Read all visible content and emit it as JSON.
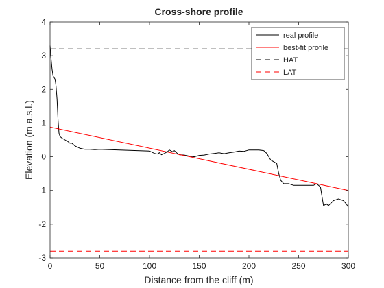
{
  "chart_data": {
    "type": "line",
    "title": "Cross-shore profile",
    "xlabel": "Distance from the cliff (m)",
    "ylabel": "Elevation (m a.s.l.)",
    "xlim": [
      0,
      300
    ],
    "ylim": [
      -3,
      4
    ],
    "xticks": [
      0,
      50,
      100,
      150,
      200,
      250,
      300
    ],
    "yticks": [
      -3,
      -2,
      -1,
      0,
      1,
      2,
      3,
      4
    ],
    "grid": false,
    "legend_position": "top-right",
    "series": [
      {
        "name": "real profile",
        "color": "#000000",
        "style": "solid",
        "x": [
          0,
          1,
          2,
          3,
          5,
          6,
          7,
          8,
          9,
          10,
          12,
          15,
          18,
          20,
          22,
          25,
          28,
          30,
          35,
          40,
          45,
          50,
          60,
          70,
          80,
          90,
          100,
          105,
          108,
          110,
          112,
          115,
          118,
          120,
          123,
          125,
          128,
          130,
          135,
          140,
          145,
          150,
          155,
          160,
          165,
          170,
          175,
          180,
          185,
          190,
          195,
          200,
          205,
          210,
          215,
          218,
          220,
          222,
          225,
          228,
          230,
          232,
          235,
          240,
          245,
          250,
          255,
          260,
          265,
          268,
          270,
          272,
          273,
          275,
          278,
          280,
          285,
          290,
          295,
          298,
          300
        ],
        "y": [
          3.3,
          2.9,
          2.6,
          2.4,
          2.3,
          2.1,
          1.7,
          1.1,
          0.7,
          0.6,
          0.55,
          0.5,
          0.45,
          0.4,
          0.4,
          0.32,
          0.28,
          0.25,
          0.22,
          0.22,
          0.21,
          0.22,
          0.21,
          0.2,
          0.19,
          0.18,
          0.17,
          0.1,
          0.08,
          0.12,
          0.06,
          0.1,
          0.15,
          0.2,
          0.15,
          0.18,
          0.1,
          0.06,
          0.05,
          0.02,
          0.0,
          0.04,
          0.05,
          0.08,
          0.1,
          0.12,
          0.09,
          0.12,
          0.14,
          0.17,
          0.16,
          0.2,
          0.2,
          0.2,
          0.18,
          0.1,
          0.0,
          -0.1,
          -0.15,
          -0.2,
          -0.5,
          -0.7,
          -0.8,
          -0.8,
          -0.85,
          -0.85,
          -0.85,
          -0.85,
          -0.85,
          -0.8,
          -0.85,
          -0.9,
          -1.1,
          -1.45,
          -1.4,
          -1.45,
          -1.3,
          -1.25,
          -1.3,
          -1.4,
          -1.5
        ]
      },
      {
        "name": "best-fit profile",
        "color": "#ff0000",
        "style": "solid",
        "x": [
          0,
          300
        ],
        "y": [
          0.88,
          -1.0
        ]
      },
      {
        "name": "HAT",
        "color": "#000000",
        "style": "dashed",
        "x": [
          0,
          300
        ],
        "y": [
          3.2,
          3.2
        ]
      },
      {
        "name": "LAT",
        "color": "#ff0000",
        "style": "dashed",
        "x": [
          0,
          300
        ],
        "y": [
          -2.8,
          -2.8
        ]
      }
    ]
  }
}
